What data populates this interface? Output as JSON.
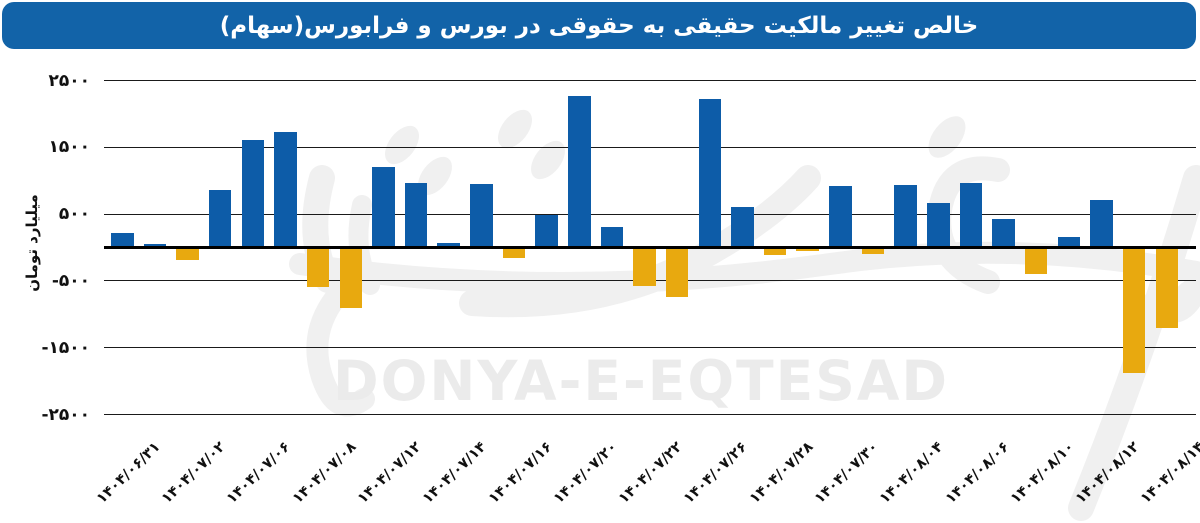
{
  "banner": {
    "title": "خالص تغییر مالکیت حقیقی به حقوقی در بورس و فرابورس(سهام)"
  },
  "watermark": {
    "text": "DONYA-E-EQTESAD"
  },
  "y_axis": {
    "title": "میلیارد تومان",
    "tick_values": [
      2500,
      1500,
      500,
      -500,
      -1500,
      -2500
    ],
    "tick_labels": [
      "۲۵۰۰",
      "۱۵۰۰",
      "۵۰۰",
      "-۵۰۰",
      "-۱۵۰۰",
      "-۲۵۰۰"
    ]
  },
  "colors": {
    "banner_bg": "#1263A8",
    "banner_text": "#FFFFFF",
    "bar_positive": "#0D5CA8",
    "bar_negative": "#E8A90F",
    "gridline": "#1A1A1A",
    "zero_axis": "#000000",
    "tick_text": "#111111",
    "watermark": "#EBEBEB",
    "background": "#FFFFFF"
  },
  "chart_data": {
    "type": "bar",
    "title": "خالص تغییر مالکیت حقیقی به حقوقی در بورس و فرابورس(سهام)",
    "xlabel": "",
    "ylabel": "میلیارد تومان",
    "ylim": [
      -2500,
      2500
    ],
    "gridlines": [
      2500,
      1500,
      500,
      -500,
      -1500,
      -2500
    ],
    "zero_line": true,
    "legend_position": "none",
    "bar_count": 33,
    "x_tick_label_every": 2,
    "x_tick_labels": [
      "۱۴۰۴/۰۶/۳۱",
      "۱۴۰۴/۰۷/۰۲",
      "۱۴۰۴/۰۷/۰۶",
      "۱۴۰۴/۰۷/۰۸",
      "۱۴۰۴/۰۷/۱۲",
      "۱۴۰۴/۰۷/۱۴",
      "۱۴۰۴/۰۷/۱۶",
      "۱۴۰۴/۰۷/۲۰",
      "۱۴۰۴/۰۷/۲۲",
      "۱۴۰۴/۰۷/۲۶",
      "۱۴۰۴/۰۷/۲۸",
      "۱۴۰۴/۰۷/۳۰",
      "۱۴۰۴/۰۸/۰۴",
      "۱۴۰۴/۰۸/۰۶",
      "۱۴۰۴/۰۸/۱۰",
      "۱۴۰۴/۰۸/۱۲",
      "۱۴۰۴/۰۸/۱۴"
    ],
    "values": [
      220,
      50,
      -180,
      860,
      1610,
      1725,
      -590,
      -910,
      1210,
      970,
      65,
      950,
      -150,
      490,
      2270,
      300,
      -570,
      -740,
      2220,
      600,
      -115,
      -55,
      920,
      -95,
      935,
      670,
      965,
      420,
      -390,
      150,
      710,
      -1875,
      -1200
    ]
  }
}
